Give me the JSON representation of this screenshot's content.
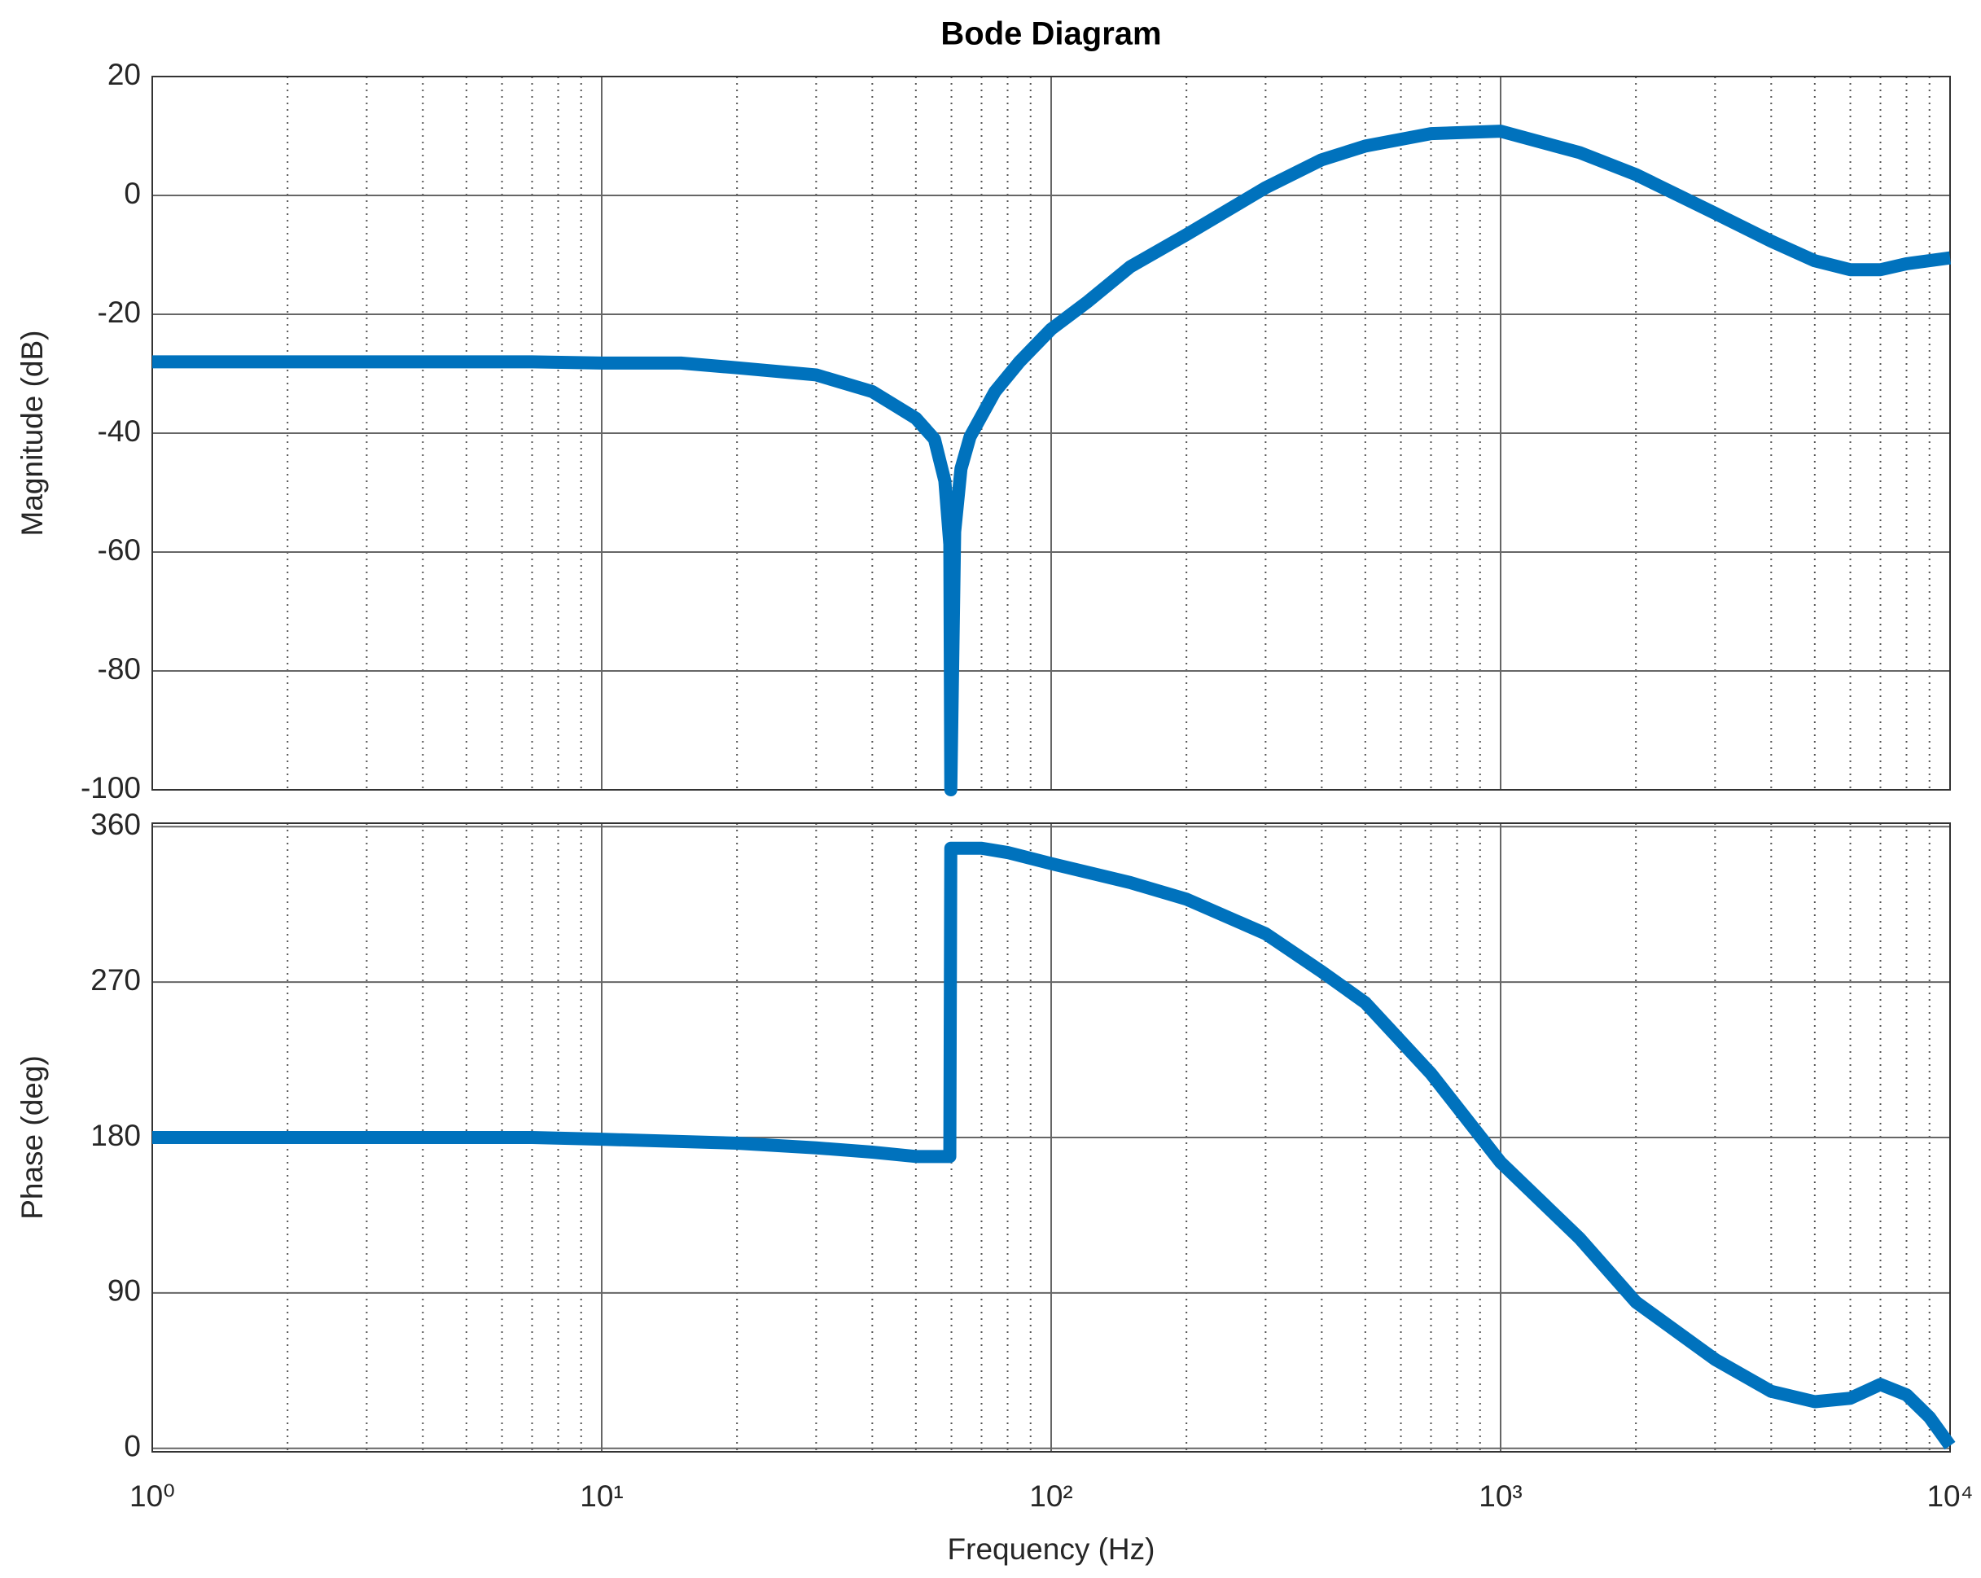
{
  "chart_data": [
    {
      "type": "line",
      "title": "Bode Diagram",
      "y_label": "Magnitude (dB)",
      "xscale": "log",
      "xlim": [
        1,
        10000
      ],
      "xticks": [
        1,
        10,
        100,
        1000,
        10000
      ],
      "ylim": [
        -100,
        20
      ],
      "yticks": [
        -100,
        -80,
        -60,
        -40,
        -20,
        0,
        20
      ],
      "grid": true,
      "series": [
        {
          "color": "#0072bd",
          "x": [
            1,
            2,
            5,
            7,
            10,
            15,
            20,
            30,
            40,
            50,
            55,
            58,
            59.5,
            59.8,
            61,
            63,
            66,
            75,
            85,
            100,
            120,
            150,
            200,
            300,
            400,
            500,
            700,
            1000,
            1500,
            2000,
            3000,
            4000,
            5000,
            6000,
            7000,
            8000,
            10000
          ],
          "values": [
            -28,
            -28,
            -28,
            -28,
            -28.2,
            -28.2,
            -29,
            -30.2,
            -33,
            -37.5,
            -41,
            -48,
            -58.7,
            -100,
            -56.6,
            -46,
            -40.6,
            -33,
            -28,
            -22.5,
            -18,
            -12,
            -6.6,
            1.3,
            6,
            8.3,
            10.4,
            10.8,
            7.2,
            3.5,
            -3,
            -7.7,
            -11,
            -12.5,
            -12.5,
            -11.5,
            -10.5
          ]
        }
      ]
    },
    {
      "type": "line",
      "y_label": "Phase (deg)",
      "x_label": "Frequency  (Hz)",
      "xscale": "log",
      "xlim": [
        1,
        10000
      ],
      "xticks": [
        {
          "value": 1,
          "label": "10⁰"
        },
        {
          "value": 10,
          "label": "10¹"
        },
        {
          "value": 100,
          "label": "10²"
        },
        {
          "value": 1000,
          "label": "10³"
        },
        {
          "value": 10000,
          "label": "10⁴"
        }
      ],
      "ylim": [
        -2,
        362
      ],
      "yticks": [
        0,
        90,
        180,
        270,
        360
      ],
      "grid": true,
      "series": [
        {
          "color": "#0072bd",
          "x": [
            1,
            7,
            10,
            20,
            30,
            40,
            50,
            59.5,
            59.8,
            70,
            80,
            100,
            150,
            200,
            300,
            400,
            500,
            700,
            1000,
            1500,
            2000,
            3000,
            4000,
            5000,
            6000,
            7000,
            8000,
            9000,
            10000
          ],
          "values": [
            180,
            180,
            179,
            176.7,
            174,
            171.5,
            169,
            169,
            347.5,
            347.5,
            345,
            338.6,
            327.6,
            318,
            298,
            276,
            258,
            217,
            165.6,
            121.5,
            84.7,
            51.5,
            33,
            27,
            29,
            37,
            31,
            18,
            1.5
          ]
        }
      ]
    }
  ]
}
